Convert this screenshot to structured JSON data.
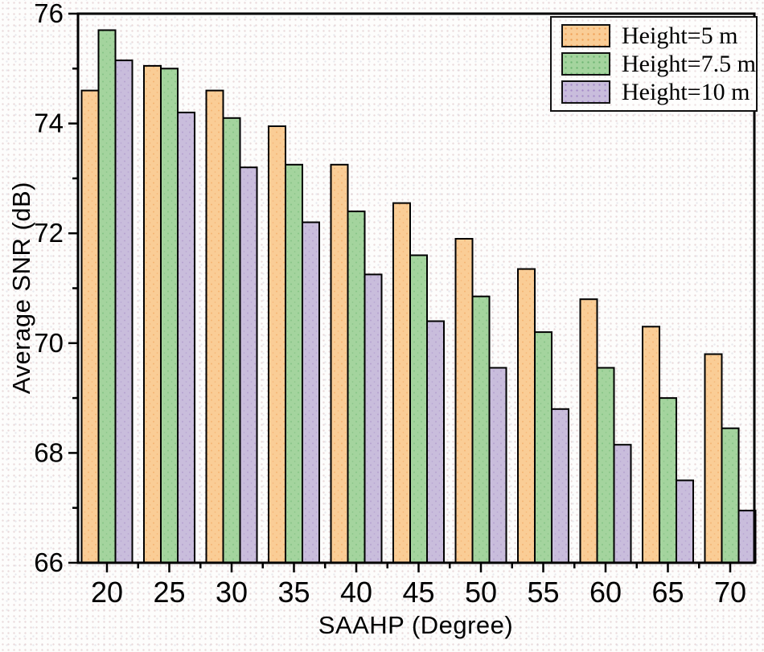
{
  "chart_data": {
    "type": "bar",
    "title": "",
    "xlabel": "SAAHP (Degree)",
    "ylabel": "Average SNR (dB)",
    "categories": [
      20,
      25,
      30,
      35,
      40,
      45,
      50,
      55,
      60,
      65,
      70
    ],
    "series": [
      {
        "label": "Height=5 m",
        "color": "#FACD96",
        "dot_color": "#EFA057",
        "values": [
          74.6,
          75.05,
          74.6,
          73.95,
          73.25,
          72.55,
          71.9,
          71.35,
          70.8,
          70.3,
          69.8
        ]
      },
      {
        "label": "Height=7.5 m",
        "color": "#A4D49E",
        "dot_color": "#6FB574",
        "values": [
          75.7,
          75.0,
          74.1,
          73.25,
          72.4,
          71.6,
          70.85,
          70.2,
          69.55,
          69.0,
          68.45
        ]
      },
      {
        "label": "Height=10 m",
        "color": "#C9BDDC",
        "dot_color": "#A58BC7",
        "values": [
          75.15,
          74.2,
          73.2,
          72.2,
          71.25,
          70.4,
          69.55,
          68.8,
          68.15,
          67.5,
          66.95
        ]
      }
    ],
    "ylim": [
      66,
      76
    ],
    "yticks": [
      66,
      68,
      70,
      72,
      74,
      76
    ],
    "y_minor_ticks": [
      67,
      69,
      71,
      73,
      75
    ],
    "grid": false,
    "legend_position": "top-right",
    "bar_outline": "#000000",
    "axis_color": "#000000"
  }
}
